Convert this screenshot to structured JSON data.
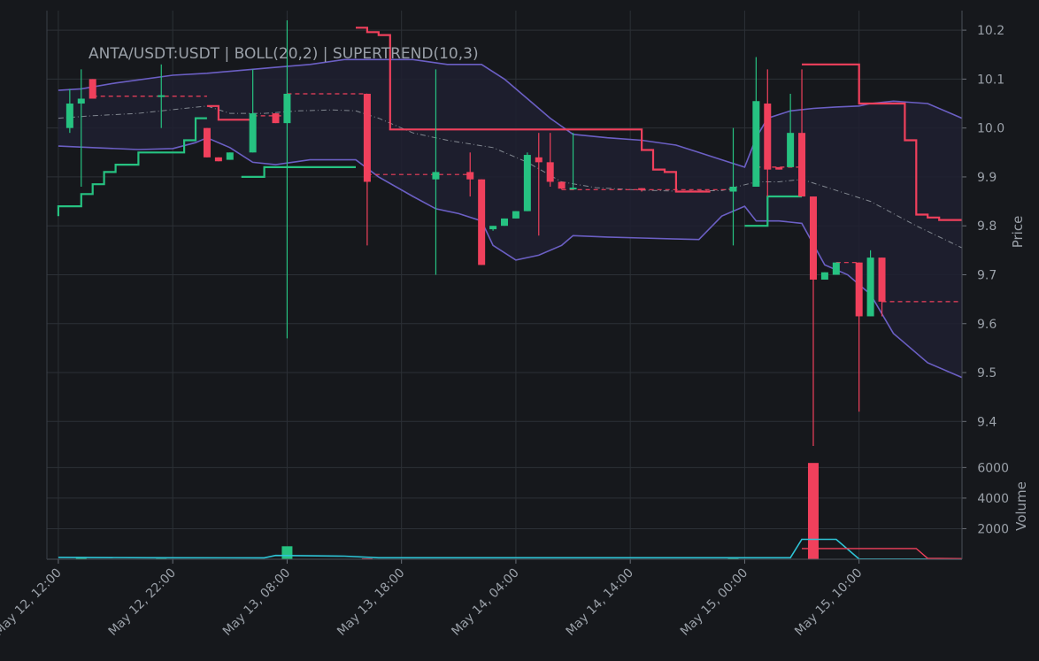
{
  "chart_data": {
    "type": "candlestick",
    "title": "ANTA/USDT:USDT | BOLL(20,2) | SUPERTREND(10,3)",
    "ylabel": "Price",
    "volume_label": "Volume",
    "ylim": [
      9.33,
      10.24
    ],
    "volume_ylim": [
      0,
      6600
    ],
    "price_ticks": [
      "10.2",
      "10.1",
      "10.0",
      "9.9",
      "9.8",
      "9.7",
      "9.6",
      "9.5",
      "9.4"
    ],
    "price_tick_values": [
      10.2,
      10.1,
      10.0,
      9.9,
      9.8,
      9.7,
      9.6,
      9.5,
      9.4
    ],
    "volume_ticks": [
      "6000",
      "4000",
      "2000"
    ],
    "volume_tick_values": [
      6000,
      4000,
      2000
    ],
    "x_start_hour": 12,
    "x_end_hour": 83.5,
    "x_ticks": [
      "May 12, 12:00",
      "May 12, 22:00",
      "May 13, 08:00",
      "May 13, 18:00",
      "May 14, 04:00",
      "May 14, 14:00",
      "May 15, 00:00",
      "May 15, 10:00"
    ],
    "x_tick_hours": [
      12,
      22,
      32,
      42,
      52,
      62,
      72,
      82
    ],
    "grid": true,
    "colors": {
      "up": "#26c281",
      "down": "#f0405c",
      "boll_band": "#6b5fc4",
      "boll_mid": "#9aa0a8",
      "boll_fill": "#1e2030",
      "supertrend_up": "#26c281",
      "supertrend_down": "#f0405c",
      "volume_ma": "#2ec4d6",
      "volume_ma2": "#f0405c"
    },
    "candles": [
      {
        "t": 13,
        "o": 10.0,
        "h": 10.08,
        "l": 9.99,
        "c": 10.05
      },
      {
        "t": 14,
        "o": 10.05,
        "h": 10.12,
        "l": 9.88,
        "c": 10.06
      },
      {
        "t": 15,
        "o": 10.1,
        "h": 10.1,
        "l": 10.06,
        "c": 10.06
      },
      {
        "t": 21,
        "o": 10.064,
        "h": 10.13,
        "l": 10.0,
        "c": 10.067
      },
      {
        "t": 25,
        "o": 10.0,
        "h": 10.0,
        "l": 9.94,
        "c": 9.94
      },
      {
        "t": 26,
        "o": 9.94,
        "h": 9.94,
        "l": 9.932,
        "c": 9.932
      },
      {
        "t": 27,
        "o": 9.935,
        "h": 9.95,
        "l": 9.935,
        "c": 9.95
      },
      {
        "t": 29,
        "o": 9.95,
        "h": 10.12,
        "l": 9.95,
        "c": 10.03
      },
      {
        "t": 31,
        "o": 10.03,
        "h": 10.03,
        "l": 10.01,
        "c": 10.01
      },
      {
        "t": 32,
        "o": 10.01,
        "h": 10.22,
        "l": 9.57,
        "c": 10.07
      },
      {
        "t": 39,
        "o": 10.07,
        "h": 10.07,
        "l": 9.76,
        "c": 9.89
      },
      {
        "t": 45,
        "o": 9.895,
        "h": 10.12,
        "l": 9.7,
        "c": 9.91
      },
      {
        "t": 48,
        "o": 9.91,
        "h": 9.95,
        "l": 9.86,
        "c": 9.895
      },
      {
        "t": 49,
        "o": 9.895,
        "h": 9.895,
        "l": 9.72,
        "c": 9.72
      },
      {
        "t": 50,
        "o": 9.793,
        "h": 9.8,
        "l": 9.79,
        "c": 9.8
      },
      {
        "t": 51,
        "o": 9.8,
        "h": 9.815,
        "l": 9.8,
        "c": 9.815
      },
      {
        "t": 52,
        "o": 9.815,
        "h": 9.83,
        "l": 9.815,
        "c": 9.83
      },
      {
        "t": 53,
        "o": 9.83,
        "h": 9.95,
        "l": 9.83,
        "c": 9.945
      },
      {
        "t": 54,
        "o": 9.94,
        "h": 9.99,
        "l": 9.78,
        "c": 9.93
      },
      {
        "t": 55,
        "o": 9.93,
        "h": 9.99,
        "l": 9.88,
        "c": 9.89
      },
      {
        "t": 56,
        "o": 9.89,
        "h": 9.89,
        "l": 9.875,
        "c": 9.876
      },
      {
        "t": 57,
        "o": 9.876,
        "h": 9.99,
        "l": 9.876,
        "c": 9.878
      },
      {
        "t": 63,
        "o": 9.877,
        "h": 9.877,
        "l": 9.87,
        "c": 9.873
      },
      {
        "t": 71,
        "o": 9.87,
        "h": 10.0,
        "l": 9.76,
        "c": 9.88
      },
      {
        "t": 73,
        "o": 9.88,
        "h": 10.145,
        "l": 9.88,
        "c": 10.055
      },
      {
        "t": 74,
        "o": 10.05,
        "h": 10.12,
        "l": 9.86,
        "c": 9.915
      },
      {
        "t": 75,
        "o": 9.92,
        "h": 9.92,
        "l": 9.915,
        "c": 9.915
      },
      {
        "t": 76,
        "o": 9.92,
        "h": 10.07,
        "l": 9.92,
        "c": 9.99
      },
      {
        "t": 77,
        "o": 9.99,
        "h": 10.12,
        "l": 9.86,
        "c": 9.86
      },
      {
        "t": 78,
        "o": 9.86,
        "h": 9.86,
        "l": 9.35,
        "c": 9.69
      },
      {
        "t": 79,
        "o": 9.69,
        "h": 9.705,
        "l": 9.69,
        "c": 9.705
      },
      {
        "t": 80,
        "o": 9.7,
        "h": 9.725,
        "l": 9.7,
        "c": 9.725
      },
      {
        "t": 82,
        "o": 9.725,
        "h": 9.725,
        "l": 9.42,
        "c": 9.615
      },
      {
        "t": 83,
        "o": 9.615,
        "h": 9.75,
        "l": 9.615,
        "c": 9.735
      },
      {
        "t": 84,
        "o": 9.735,
        "h": 9.735,
        "l": 9.615,
        "c": 9.645
      }
    ],
    "dashed_levels": [
      {
        "t0": 15,
        "t1": 25,
        "v": 10.065
      },
      {
        "t0": 29,
        "t1": 32,
        "v": 10.025
      },
      {
        "t0": 32,
        "t1": 39,
        "v": 10.07
      },
      {
        "t0": 39,
        "t1": 48,
        "v": 9.905
      },
      {
        "t0": 56,
        "t1": 71,
        "v": 9.874
      },
      {
        "t0": 73,
        "t1": 77,
        "v": 9.92
      },
      {
        "t0": 80,
        "t1": 82,
        "v": 9.725
      },
      {
        "t0": 84,
        "t1": 91,
        "v": 9.645
      }
    ],
    "boll_upper": [
      [
        12,
        10.077
      ],
      [
        14,
        10.08
      ],
      [
        17,
        10.092
      ],
      [
        22,
        10.108
      ],
      [
        25,
        10.112
      ],
      [
        28,
        10.118
      ],
      [
        31,
        10.124
      ],
      [
        34,
        10.13
      ],
      [
        37,
        10.14
      ],
      [
        40,
        10.14
      ],
      [
        43,
        10.14
      ],
      [
        46,
        10.13
      ],
      [
        49,
        10.13
      ],
      [
        51,
        10.1
      ],
      [
        53,
        10.06
      ],
      [
        55,
        10.02
      ],
      [
        57,
        9.987
      ],
      [
        60,
        9.98
      ],
      [
        63,
        9.975
      ],
      [
        66,
        9.965
      ],
      [
        68,
        9.95
      ],
      [
        70,
        9.935
      ],
      [
        72,
        9.92
      ],
      [
        73,
        9.98
      ],
      [
        74,
        10.02
      ],
      [
        76,
        10.035
      ],
      [
        78,
        10.04
      ],
      [
        80,
        10.043
      ],
      [
        82,
        10.045
      ],
      [
        83,
        10.05
      ],
      [
        85,
        10.055
      ],
      [
        88,
        10.05
      ],
      [
        91,
        10.02
      ]
    ],
    "boll_lower": [
      [
        12,
        9.963
      ],
      [
        15,
        9.96
      ],
      [
        19,
        9.956
      ],
      [
        22,
        9.958
      ],
      [
        24,
        9.97
      ],
      [
        25,
        9.98
      ],
      [
        27,
        9.96
      ],
      [
        29,
        9.93
      ],
      [
        31,
        9.925
      ],
      [
        34,
        9.935
      ],
      [
        37,
        9.935
      ],
      [
        38,
        9.935
      ],
      [
        40,
        9.9
      ],
      [
        43,
        9.86
      ],
      [
        45,
        9.835
      ],
      [
        47,
        9.825
      ],
      [
        49,
        9.81
      ],
      [
        50,
        9.76
      ],
      [
        52,
        9.73
      ],
      [
        54,
        9.74
      ],
      [
        56,
        9.76
      ],
      [
        57,
        9.78
      ],
      [
        60,
        9.777
      ],
      [
        63,
        9.775
      ],
      [
        66,
        9.773
      ],
      [
        68,
        9.772
      ],
      [
        70,
        9.82
      ],
      [
        72,
        9.84
      ],
      [
        73,
        9.81
      ],
      [
        75,
        9.81
      ],
      [
        77,
        9.805
      ],
      [
        79,
        9.72
      ],
      [
        81,
        9.7
      ],
      [
        83,
        9.66
      ],
      [
        85,
        9.58
      ],
      [
        88,
        9.52
      ],
      [
        91,
        9.49
      ]
    ],
    "boll_mid": [
      [
        12,
        10.02
      ],
      [
        15,
        10.025
      ],
      [
        19,
        10.03
      ],
      [
        23,
        10.04
      ],
      [
        25,
        10.045
      ],
      [
        27,
        10.03
      ],
      [
        30,
        10.03
      ],
      [
        33,
        10.035
      ],
      [
        36,
        10.037
      ],
      [
        38,
        10.035
      ],
      [
        40,
        10.02
      ],
      [
        43,
        9.99
      ],
      [
        46,
        9.975
      ],
      [
        50,
        9.96
      ],
      [
        53,
        9.93
      ],
      [
        56,
        9.89
      ],
      [
        59,
        9.878
      ],
      [
        63,
        9.873
      ],
      [
        66,
        9.871
      ],
      [
        70,
        9.872
      ],
      [
        73,
        9.89
      ],
      [
        75,
        9.89
      ],
      [
        77,
        9.895
      ],
      [
        79,
        9.88
      ],
      [
        83,
        9.85
      ],
      [
        87,
        9.8
      ],
      [
        91,
        9.755
      ]
    ],
    "supertrend_up": [
      [
        [
          12,
          9.82
        ],
        [
          12,
          9.84
        ],
        [
          14,
          9.84
        ],
        [
          14,
          9.865
        ],
        [
          15,
          9.865
        ],
        [
          15,
          9.885
        ],
        [
          16,
          9.885
        ],
        [
          16,
          9.91
        ],
        [
          17,
          9.91
        ],
        [
          17,
          9.925
        ],
        [
          19,
          9.925
        ],
        [
          19,
          9.95
        ],
        [
          23,
          9.95
        ],
        [
          23,
          9.975
        ],
        [
          24,
          9.975
        ],
        [
          24,
          10.02
        ],
        [
          25,
          10.02
        ]
      ],
      [
        [
          28,
          9.9
        ],
        [
          30,
          9.9
        ],
        [
          30,
          9.92
        ],
        [
          38,
          9.92
        ]
      ],
      [
        [
          72,
          9.8
        ],
        [
          74,
          9.8
        ],
        [
          74,
          9.86
        ],
        [
          77,
          9.86
        ]
      ]
    ],
    "supertrend_down": [
      [
        [
          25,
          10.045
        ],
        [
          26,
          10.045
        ],
        [
          26,
          10.017
        ],
        [
          29,
          10.017
        ]
      ],
      [
        [
          38,
          10.205
        ],
        [
          39,
          10.205
        ],
        [
          39,
          10.196
        ],
        [
          40,
          10.196
        ],
        [
          40,
          10.19
        ],
        [
          41,
          10.19
        ],
        [
          41,
          9.997
        ],
        [
          63,
          9.997
        ],
        [
          63,
          9.955
        ],
        [
          64,
          9.955
        ],
        [
          64,
          9.915
        ],
        [
          65,
          9.915
        ],
        [
          65,
          9.91
        ],
        [
          66,
          9.91
        ],
        [
          66,
          9.87
        ],
        [
          69,
          9.87
        ]
      ],
      [
        [
          77,
          10.13
        ],
        [
          82,
          10.13
        ],
        [
          82,
          10.05
        ],
        [
          86,
          10.05
        ],
        [
          86,
          9.975
        ],
        [
          87,
          9.975
        ],
        [
          87,
          9.823
        ],
        [
          88,
          9.823
        ],
        [
          88,
          9.817
        ],
        [
          89,
          9.817
        ],
        [
          89,
          9.812
        ],
        [
          91,
          9.812
        ]
      ]
    ],
    "volume_bars": [
      {
        "t": 14,
        "v": 150,
        "c": "up"
      },
      {
        "t": 21,
        "v": 50,
        "c": "up"
      },
      {
        "t": 32,
        "v": 850,
        "c": "up"
      },
      {
        "t": 39,
        "v": 60,
        "c": "down"
      },
      {
        "t": 71,
        "v": 90,
        "c": "up"
      },
      {
        "t": 78,
        "v": 6300,
        "c": "down"
      }
    ],
    "volume_ma": [
      [
        12,
        120
      ],
      [
        20,
        100
      ],
      [
        30,
        90
      ],
      [
        31,
        250
      ],
      [
        37,
        200
      ],
      [
        40,
        100
      ],
      [
        76,
        100
      ],
      [
        77,
        1300
      ],
      [
        80,
        1300
      ],
      [
        82,
        20
      ],
      [
        91,
        10
      ]
    ],
    "volume_ma2": [
      [
        77,
        700
      ],
      [
        87,
        700
      ],
      [
        88,
        60
      ],
      [
        91,
        40
      ]
    ]
  }
}
